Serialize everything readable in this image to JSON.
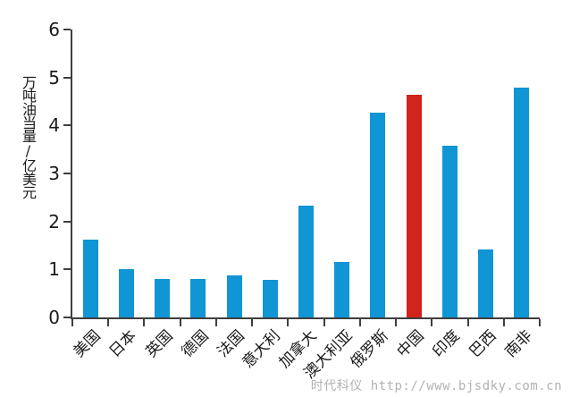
{
  "chart_data": {
    "type": "bar",
    "categories": [
      "美国",
      "日本",
      "英国",
      "德国",
      "法国",
      "意大利",
      "加拿大",
      "澳大利亚",
      "俄罗斯",
      "中国",
      "印度",
      "巴西",
      "南非"
    ],
    "values": [
      1.62,
      1.01,
      0.8,
      0.81,
      0.88,
      0.79,
      2.33,
      1.15,
      4.27,
      4.64,
      3.57,
      1.42,
      4.79
    ],
    "title": "",
    "xlabel": "",
    "ylabel": "万吨油当量/亿美元",
    "ylim": [
      0,
      6
    ],
    "yticks": [
      0,
      1,
      2,
      3,
      4,
      5,
      6
    ],
    "grid": false,
    "legend": null,
    "highlight_index": 9,
    "colors": {
      "bar_default": "#1095d5",
      "bar_highlight": "#d2231d",
      "axis": "#3f3f3f",
      "text": "#1a1a1a"
    }
  },
  "watermark": {
    "text": "时代科仪 http://www.bjsdky.com.cn",
    "color": "#b2b2b2"
  }
}
